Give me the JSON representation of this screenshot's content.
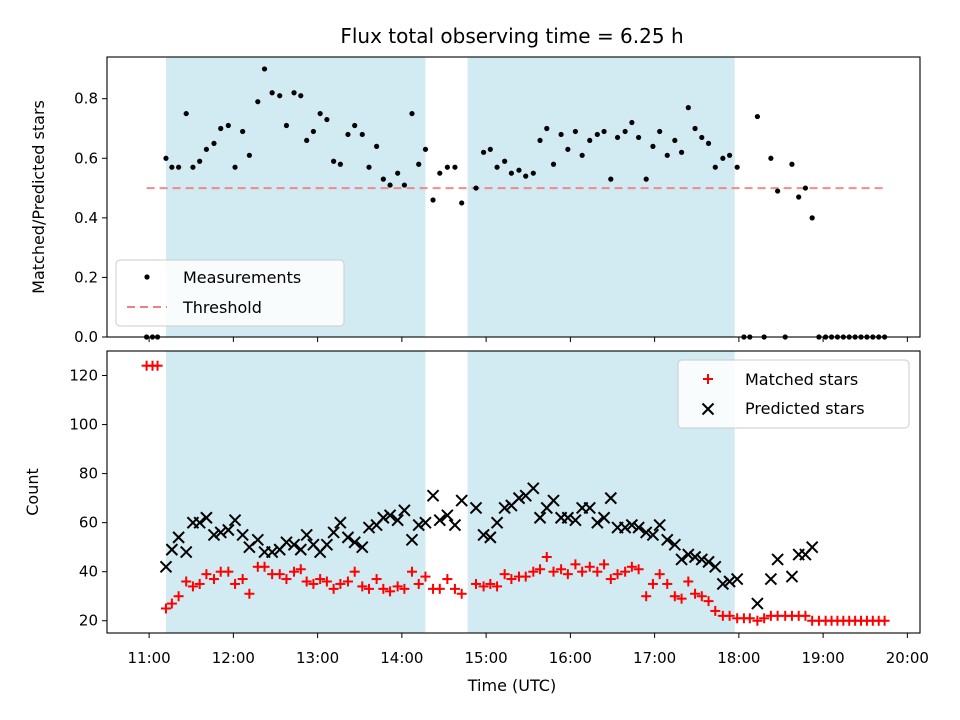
{
  "chart_data": {
    "title": "Flux total observing time = 6.25 h",
    "xlabel": "Time (UTC)",
    "x_units": "hours (UTC)",
    "xlim": [
      10.5,
      20.15
    ],
    "x_ticks": [
      {
        "v": 11,
        "label": "11:00"
      },
      {
        "v": 12,
        "label": "12:00"
      },
      {
        "v": 13,
        "label": "13:00"
      },
      {
        "v": 14,
        "label": "14:00"
      },
      {
        "v": 15,
        "label": "15:00"
      },
      {
        "v": 16,
        "label": "16:00"
      },
      {
        "v": 17,
        "label": "17:00"
      },
      {
        "v": 18,
        "label": "18:00"
      },
      {
        "v": 19,
        "label": "19:00"
      },
      {
        "v": 20,
        "label": "20:00"
      }
    ],
    "shaded_spans": [
      [
        11.2,
        14.28
      ],
      [
        14.78,
        17.95
      ]
    ],
    "shade_color": "#add8e6",
    "top": {
      "type": "scatter",
      "ylabel": "Matched/Predicted stars",
      "ylim": [
        0,
        0.94
      ],
      "y_ticks": [
        {
          "v": 0.0,
          "label": "0.0"
        },
        {
          "v": 0.2,
          "label": "0.2"
        },
        {
          "v": 0.4,
          "label": "0.4"
        },
        {
          "v": 0.6,
          "label": "0.6"
        },
        {
          "v": 0.8,
          "label": "0.8"
        }
      ],
      "threshold": {
        "value": 0.5,
        "x_range": [
          10.97,
          19.75
        ],
        "color": "#f08080"
      },
      "legend": {
        "position": "lower-left",
        "measurements": "Measurements",
        "threshold": "Threshold"
      },
      "measurements": [
        [
          10.97,
          0.0
        ],
        [
          11.04,
          0.0
        ],
        [
          11.1,
          0.0
        ],
        [
          11.2,
          0.6
        ],
        [
          11.27,
          0.57
        ],
        [
          11.35,
          0.57
        ],
        [
          11.44,
          0.75
        ],
        [
          11.52,
          0.57
        ],
        [
          11.6,
          0.59
        ],
        [
          11.68,
          0.63
        ],
        [
          11.77,
          0.65
        ],
        [
          11.85,
          0.7
        ],
        [
          11.94,
          0.71
        ],
        [
          12.02,
          0.57
        ],
        [
          12.11,
          0.69
        ],
        [
          12.19,
          0.61
        ],
        [
          12.29,
          0.79
        ],
        [
          12.37,
          0.9
        ],
        [
          12.46,
          0.82
        ],
        [
          12.55,
          0.81
        ],
        [
          12.63,
          0.71
        ],
        [
          12.72,
          0.82
        ],
        [
          12.8,
          0.81
        ],
        [
          12.87,
          0.66
        ],
        [
          12.95,
          0.69
        ],
        [
          13.03,
          0.75
        ],
        [
          13.11,
          0.73
        ],
        [
          13.19,
          0.59
        ],
        [
          13.27,
          0.58
        ],
        [
          13.36,
          0.68
        ],
        [
          13.44,
          0.71
        ],
        [
          13.53,
          0.68
        ],
        [
          13.61,
          0.57
        ],
        [
          13.7,
          0.64
        ],
        [
          13.78,
          0.53
        ],
        [
          13.86,
          0.51
        ],
        [
          13.95,
          0.55
        ],
        [
          14.03,
          0.51
        ],
        [
          14.12,
          0.75
        ],
        [
          14.2,
          0.58
        ],
        [
          14.28,
          0.63
        ],
        [
          14.37,
          0.46
        ],
        [
          14.45,
          0.55
        ],
        [
          14.54,
          0.57
        ],
        [
          14.63,
          0.57
        ],
        [
          14.71,
          0.45
        ],
        [
          14.88,
          0.5
        ],
        [
          14.97,
          0.62
        ],
        [
          15.05,
          0.63
        ],
        [
          15.13,
          0.57
        ],
        [
          15.22,
          0.59
        ],
        [
          15.3,
          0.55
        ],
        [
          15.39,
          0.56
        ],
        [
          15.47,
          0.54
        ],
        [
          15.56,
          0.55
        ],
        [
          15.64,
          0.66
        ],
        [
          15.72,
          0.7
        ],
        [
          15.8,
          0.58
        ],
        [
          15.89,
          0.68
        ],
        [
          15.97,
          0.63
        ],
        [
          16.06,
          0.69
        ],
        [
          16.14,
          0.61
        ],
        [
          16.23,
          0.66
        ],
        [
          16.32,
          0.68
        ],
        [
          16.4,
          0.69
        ],
        [
          16.48,
          0.53
        ],
        [
          16.56,
          0.67
        ],
        [
          16.65,
          0.69
        ],
        [
          16.73,
          0.72
        ],
        [
          16.81,
          0.67
        ],
        [
          16.9,
          0.53
        ],
        [
          16.98,
          0.64
        ],
        [
          17.06,
          0.69
        ],
        [
          17.15,
          0.61
        ],
        [
          17.24,
          0.66
        ],
        [
          17.32,
          0.62
        ],
        [
          17.4,
          0.77
        ],
        [
          17.48,
          0.7
        ],
        [
          17.56,
          0.67
        ],
        [
          17.64,
          0.65
        ],
        [
          17.72,
          0.57
        ],
        [
          17.81,
          0.6
        ],
        [
          17.89,
          0.61
        ],
        [
          17.98,
          0.57
        ],
        [
          18.06,
          0.0
        ],
        [
          18.13,
          0.0
        ],
        [
          18.22,
          0.74
        ],
        [
          18.3,
          0.0
        ],
        [
          18.38,
          0.6
        ],
        [
          18.46,
          0.49
        ],
        [
          18.55,
          0.0
        ],
        [
          18.63,
          0.58
        ],
        [
          18.71,
          0.47
        ],
        [
          18.79,
          0.5
        ],
        [
          18.87,
          0.4
        ],
        [
          18.95,
          0.0
        ],
        [
          19.03,
          0.0
        ],
        [
          19.1,
          0.0
        ],
        [
          19.17,
          0.0
        ],
        [
          19.24,
          0.0
        ],
        [
          19.31,
          0.0
        ],
        [
          19.38,
          0.0
        ],
        [
          19.45,
          0.0
        ],
        [
          19.52,
          0.0
        ],
        [
          19.59,
          0.0
        ],
        [
          19.66,
          0.0
        ],
        [
          19.73,
          0.0
        ]
      ]
    },
    "bottom": {
      "type": "scatter",
      "ylabel": "Count",
      "ylim": [
        15,
        130
      ],
      "y_ticks": [
        {
          "v": 20,
          "label": "20"
        },
        {
          "v": 40,
          "label": "40"
        },
        {
          "v": 60,
          "label": "60"
        },
        {
          "v": 80,
          "label": "80"
        },
        {
          "v": 100,
          "label": "100"
        },
        {
          "v": 120,
          "label": "120"
        }
      ],
      "legend": {
        "position": "top-right",
        "matched": "Matched stars",
        "predicted": "Predicted stars"
      },
      "matched_color": "#ff0000",
      "predicted_color": "#000000",
      "matched": [
        [
          10.97,
          124
        ],
        [
          11.04,
          124
        ],
        [
          11.1,
          124
        ],
        [
          11.2,
          25
        ],
        [
          11.27,
          27
        ],
        [
          11.35,
          30
        ],
        [
          11.44,
          36
        ],
        [
          11.52,
          34
        ],
        [
          11.6,
          35
        ],
        [
          11.68,
          39
        ],
        [
          11.77,
          37
        ],
        [
          11.85,
          40
        ],
        [
          11.94,
          40
        ],
        [
          12.02,
          35
        ],
        [
          12.11,
          37
        ],
        [
          12.19,
          31
        ],
        [
          12.29,
          42
        ],
        [
          12.37,
          42
        ],
        [
          12.46,
          39
        ],
        [
          12.55,
          39
        ],
        [
          12.63,
          37
        ],
        [
          12.72,
          40
        ],
        [
          12.8,
          41
        ],
        [
          12.87,
          36
        ],
        [
          12.95,
          35
        ],
        [
          13.03,
          37
        ],
        [
          13.11,
          36
        ],
        [
          13.19,
          33
        ],
        [
          13.27,
          35
        ],
        [
          13.36,
          36
        ],
        [
          13.44,
          40
        ],
        [
          13.53,
          34
        ],
        [
          13.61,
          33
        ],
        [
          13.7,
          37
        ],
        [
          13.78,
          33
        ],
        [
          13.86,
          32
        ],
        [
          13.95,
          34
        ],
        [
          14.03,
          33
        ],
        [
          14.12,
          40
        ],
        [
          14.2,
          35
        ],
        [
          14.28,
          38
        ],
        [
          14.37,
          33
        ],
        [
          14.45,
          33
        ],
        [
          14.54,
          37
        ],
        [
          14.63,
          33
        ],
        [
          14.71,
          31
        ],
        [
          14.88,
          35
        ],
        [
          14.97,
          34
        ],
        [
          15.05,
          35
        ],
        [
          15.13,
          34
        ],
        [
          15.22,
          39
        ],
        [
          15.3,
          37
        ],
        [
          15.39,
          38
        ],
        [
          15.47,
          38
        ],
        [
          15.56,
          40
        ],
        [
          15.64,
          41
        ],
        [
          15.72,
          46
        ],
        [
          15.8,
          40
        ],
        [
          15.89,
          41
        ],
        [
          15.97,
          39
        ],
        [
          16.06,
          43
        ],
        [
          16.14,
          40
        ],
        [
          16.23,
          42
        ],
        [
          16.32,
          40
        ],
        [
          16.4,
          43
        ],
        [
          16.48,
          37
        ],
        [
          16.56,
          39
        ],
        [
          16.65,
          40
        ],
        [
          16.73,
          42
        ],
        [
          16.81,
          41
        ],
        [
          16.9,
          30
        ],
        [
          16.98,
          35
        ],
        [
          17.06,
          39
        ],
        [
          17.15,
          35
        ],
        [
          17.24,
          30
        ],
        [
          17.32,
          29
        ],
        [
          17.4,
          36
        ],
        [
          17.48,
          31
        ],
        [
          17.56,
          30
        ],
        [
          17.64,
          28
        ],
        [
          17.72,
          24
        ],
        [
          17.81,
          22
        ],
        [
          17.89,
          22
        ],
        [
          17.98,
          21
        ],
        [
          18.06,
          21
        ],
        [
          18.13,
          21
        ],
        [
          18.22,
          20
        ],
        [
          18.3,
          21
        ],
        [
          18.38,
          22
        ],
        [
          18.46,
          22
        ],
        [
          18.55,
          22
        ],
        [
          18.63,
          22
        ],
        [
          18.71,
          22
        ],
        [
          18.79,
          22
        ],
        [
          18.87,
          20
        ],
        [
          18.95,
          20
        ],
        [
          19.03,
          20
        ],
        [
          19.1,
          20
        ],
        [
          19.17,
          20
        ],
        [
          19.24,
          20
        ],
        [
          19.31,
          20
        ],
        [
          19.38,
          20
        ],
        [
          19.45,
          20
        ],
        [
          19.52,
          20
        ],
        [
          19.59,
          20
        ],
        [
          19.66,
          20
        ],
        [
          19.73,
          20
        ]
      ],
      "predicted": [
        [
          11.2,
          42
        ],
        [
          11.27,
          49
        ],
        [
          11.35,
          54
        ],
        [
          11.44,
          48
        ],
        [
          11.52,
          60
        ],
        [
          11.6,
          60
        ],
        [
          11.68,
          62
        ],
        [
          11.77,
          55
        ],
        [
          11.85,
          56
        ],
        [
          11.94,
          57
        ],
        [
          12.02,
          61
        ],
        [
          12.11,
          55
        ],
        [
          12.19,
          50
        ],
        [
          12.29,
          53
        ],
        [
          12.37,
          48
        ],
        [
          12.46,
          48
        ],
        [
          12.55,
          49
        ],
        [
          12.63,
          52
        ],
        [
          12.72,
          51
        ],
        [
          12.8,
          49
        ],
        [
          12.87,
          55
        ],
        [
          12.95,
          51
        ],
        [
          13.03,
          48
        ],
        [
          13.11,
          51
        ],
        [
          13.19,
          56
        ],
        [
          13.27,
          60
        ],
        [
          13.36,
          54
        ],
        [
          13.44,
          52
        ],
        [
          13.53,
          50
        ],
        [
          13.61,
          58
        ],
        [
          13.7,
          59
        ],
        [
          13.78,
          62
        ],
        [
          13.86,
          63
        ],
        [
          13.95,
          61
        ],
        [
          14.03,
          65
        ],
        [
          14.12,
          53
        ],
        [
          14.2,
          59
        ],
        [
          14.28,
          60
        ],
        [
          14.37,
          71
        ],
        [
          14.45,
          61
        ],
        [
          14.54,
          63
        ],
        [
          14.63,
          59
        ],
        [
          14.71,
          69
        ],
        [
          14.88,
          66
        ],
        [
          14.97,
          55
        ],
        [
          15.05,
          54
        ],
        [
          15.13,
          60
        ],
        [
          15.22,
          66
        ],
        [
          15.3,
          67
        ],
        [
          15.39,
          70
        ],
        [
          15.47,
          71
        ],
        [
          15.56,
          74
        ],
        [
          15.64,
          62
        ],
        [
          15.72,
          66
        ],
        [
          15.8,
          69
        ],
        [
          15.89,
          62
        ],
        [
          15.97,
          62
        ],
        [
          16.06,
          61
        ],
        [
          16.14,
          66
        ],
        [
          16.23,
          66
        ],
        [
          16.32,
          60
        ],
        [
          16.4,
          62
        ],
        [
          16.48,
          70
        ],
        [
          16.56,
          58
        ],
        [
          16.65,
          58
        ],
        [
          16.73,
          59
        ],
        [
          16.81,
          58
        ],
        [
          16.9,
          56
        ],
        [
          16.98,
          55
        ],
        [
          17.06,
          59
        ],
        [
          17.15,
          53
        ],
        [
          17.24,
          51
        ],
        [
          17.32,
          45
        ],
        [
          17.4,
          47
        ],
        [
          17.48,
          46
        ],
        [
          17.56,
          45
        ],
        [
          17.64,
          44
        ],
        [
          17.72,
          42
        ],
        [
          17.81,
          35
        ],
        [
          17.89,
          36
        ],
        [
          17.98,
          37
        ],
        [
          18.22,
          27
        ],
        [
          18.38,
          37
        ],
        [
          18.46,
          45
        ],
        [
          18.63,
          38
        ],
        [
          18.71,
          47
        ],
        [
          18.79,
          47
        ],
        [
          18.87,
          50
        ]
      ]
    }
  }
}
